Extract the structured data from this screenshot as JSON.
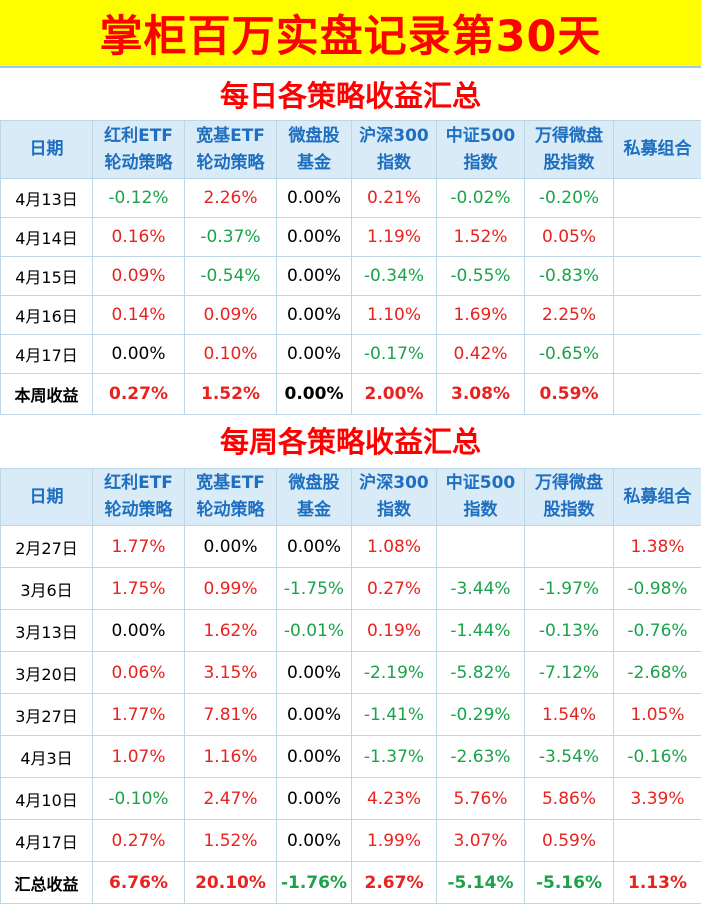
{
  "page_title": "掌柜百万实盘记录第30天",
  "colors": {
    "banner_bg": "#ffff00",
    "title": "#ff0000",
    "header_bg": "#d9ebf6",
    "header_text": "#1f6fc0",
    "positive": "#e8231f",
    "negative": "#1aa34a"
  },
  "headers": [
    [
      "日期"
    ],
    [
      "红利ETF",
      "轮动策略"
    ],
    [
      "宽基ETF",
      "轮动策略"
    ],
    [
      "微盘股",
      "基金"
    ],
    [
      "沪深300",
      "指数"
    ],
    [
      "中证500",
      "指数"
    ],
    [
      "万得微盘",
      "股指数"
    ],
    [
      "私募组合"
    ]
  ],
  "daily": {
    "title": "每日各策略收益汇总",
    "rows": [
      [
        "4月13日",
        "-0.12%",
        "2.26%",
        "0.00%",
        "0.21%",
        "-0.02%",
        "-0.20%",
        ""
      ],
      [
        "4月14日",
        "0.16%",
        "-0.37%",
        "0.00%",
        "1.19%",
        "1.52%",
        "0.05%",
        ""
      ],
      [
        "4月15日",
        "0.09%",
        "-0.54%",
        "0.00%",
        "-0.34%",
        "-0.55%",
        "-0.83%",
        ""
      ],
      [
        "4月16日",
        "0.14%",
        "0.09%",
        "0.00%",
        "1.10%",
        "1.69%",
        "2.25%",
        ""
      ],
      [
        "4月17日",
        "0.00%",
        "0.10%",
        "0.00%",
        "-0.17%",
        "0.42%",
        "-0.65%",
        ""
      ]
    ],
    "total": [
      "本周收益",
      "0.27%",
      "1.52%",
      "0.00%",
      "2.00%",
      "3.08%",
      "0.59%",
      ""
    ]
  },
  "weekly": {
    "title": "每周各策略收益汇总",
    "rows": [
      [
        "2月27日",
        "1.77%",
        "0.00%",
        "0.00%",
        "1.08%",
        "",
        "",
        "1.38%"
      ],
      [
        "3月6日",
        "1.75%",
        "0.99%",
        "-1.75%",
        "0.27%",
        "-3.44%",
        "-1.97%",
        "-0.98%"
      ],
      [
        "3月13日",
        "0.00%",
        "1.62%",
        "-0.01%",
        "0.19%",
        "-1.44%",
        "-0.13%",
        "-0.76%"
      ],
      [
        "3月20日",
        "0.06%",
        "3.15%",
        "0.00%",
        "-2.19%",
        "-5.82%",
        "-7.12%",
        "-2.68%"
      ],
      [
        "3月27日",
        "1.77%",
        "7.81%",
        "0.00%",
        "-1.41%",
        "-0.29%",
        "1.54%",
        "1.05%"
      ],
      [
        "4月3日",
        "1.07%",
        "1.16%",
        "0.00%",
        "-1.37%",
        "-2.63%",
        "-3.54%",
        "-0.16%"
      ],
      [
        "4月10日",
        "-0.10%",
        "2.47%",
        "0.00%",
        "4.23%",
        "5.76%",
        "5.86%",
        "3.39%"
      ],
      [
        "4月17日",
        "0.27%",
        "1.52%",
        "0.00%",
        "1.99%",
        "3.07%",
        "0.59%",
        ""
      ]
    ],
    "total": [
      "汇总收益",
      "6.76%",
      "20.10%",
      "-1.76%",
      "2.67%",
      "-5.14%",
      "-5.16%",
      "1.13%"
    ]
  }
}
